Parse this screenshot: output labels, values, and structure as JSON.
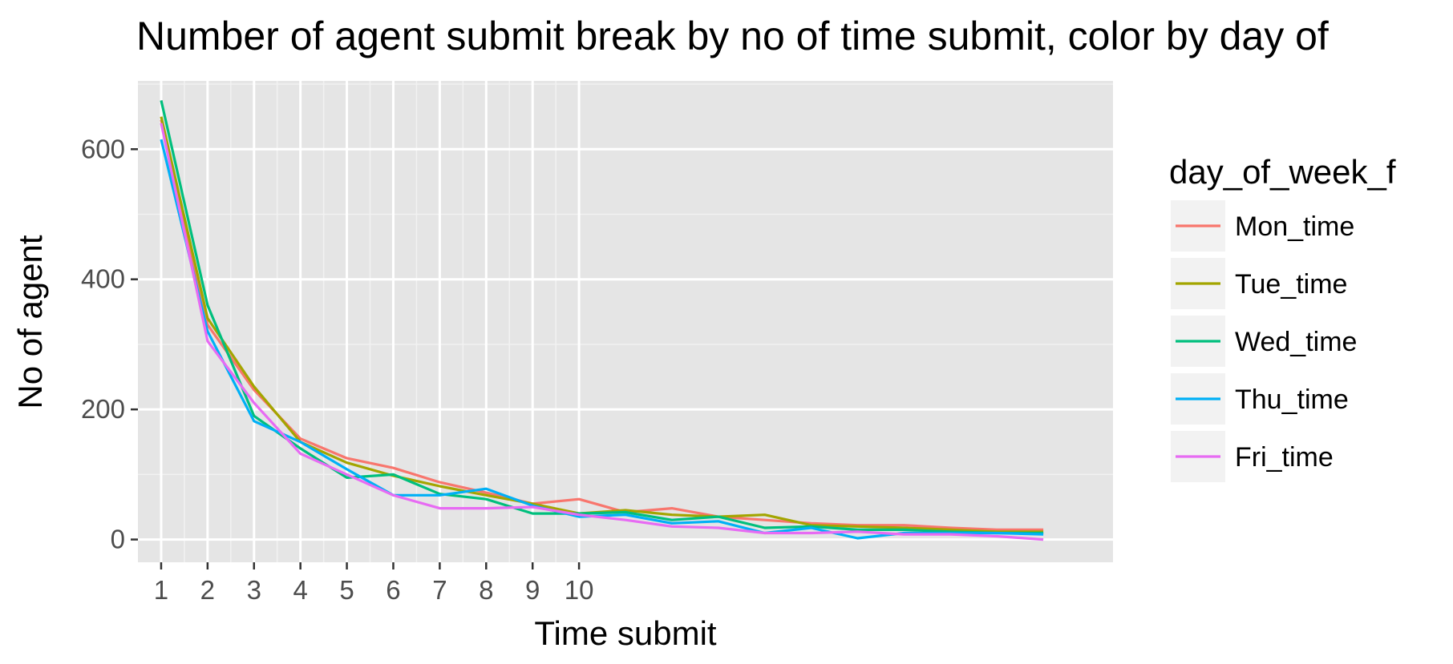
{
  "chart_data": {
    "type": "line",
    "title": "Number of agent submit break by no of time submit, color by day of",
    "xlabel": "Time submit",
    "ylabel": "No of agent",
    "xlim": [
      0.5,
      21.5
    ],
    "ylim": [
      -35,
      705
    ],
    "x_ticks": [
      1,
      2,
      3,
      4,
      5,
      6,
      7,
      8,
      9,
      10
    ],
    "y_ticks": [
      0,
      200,
      400,
      600
    ],
    "grid": true,
    "legend": {
      "title": "day_of_week_f",
      "position": "right"
    },
    "x": [
      1,
      2,
      3,
      4,
      5,
      6,
      7,
      8,
      9,
      10,
      11,
      12,
      13,
      14,
      15,
      16,
      17,
      18,
      19,
      20
    ],
    "series": [
      {
        "name": "Mon_time",
        "color": "#F8766D",
        "values": [
          645,
          330,
          230,
          155,
          125,
          110,
          88,
          72,
          55,
          62,
          42,
          48,
          35,
          30,
          25,
          22,
          22,
          18,
          15,
          15
        ]
      },
      {
        "name": "Tue_time",
        "color": "#A3A500",
        "values": [
          650,
          340,
          235,
          150,
          118,
          98,
          82,
          68,
          55,
          40,
          45,
          38,
          35,
          38,
          22,
          20,
          18,
          15,
          12,
          12
        ]
      },
      {
        "name": "Wed_time",
        "color": "#00BF7D",
        "values": [
          675,
          360,
          190,
          140,
          95,
          100,
          70,
          62,
          40,
          40,
          42,
          30,
          35,
          18,
          20,
          15,
          15,
          12,
          10,
          10
        ]
      },
      {
        "name": "Thu_time",
        "color": "#00B0F6",
        "values": [
          615,
          320,
          182,
          150,
          108,
          68,
          68,
          78,
          52,
          35,
          38,
          25,
          28,
          10,
          18,
          2,
          10,
          10,
          10,
          8
        ]
      },
      {
        "name": "Fri_time",
        "color": "#E76BF3",
        "values": [
          640,
          305,
          210,
          132,
          100,
          68,
          48,
          48,
          50,
          38,
          30,
          20,
          18,
          10,
          10,
          12,
          8,
          8,
          5,
          0
        ]
      }
    ]
  }
}
